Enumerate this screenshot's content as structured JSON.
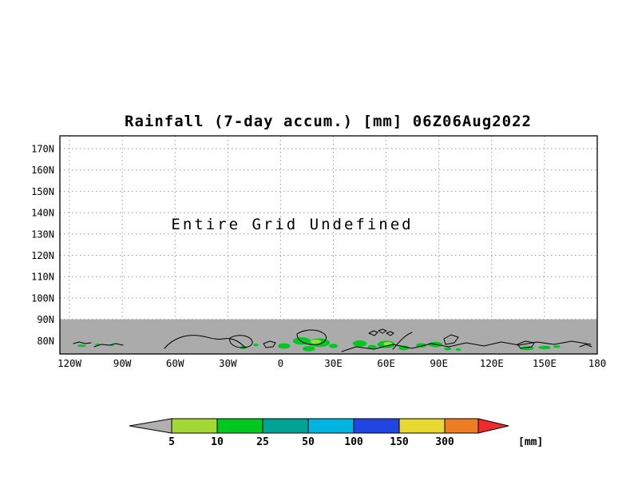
{
  "chart_data": {
    "type": "heatmap",
    "title": "Rainfall (7-day accum.) [mm] 06Z06Aug2022",
    "annotation": "Entire Grid Undefined",
    "x_axis": {
      "ticks": [
        "120W",
        "90W",
        "60W",
        "30W",
        "0",
        "30E",
        "60E",
        "90E",
        "120E",
        "150E",
        "180"
      ]
    },
    "y_axis": {
      "ticks": [
        "170N",
        "160N",
        "150N",
        "140N",
        "130N",
        "120N",
        "110N",
        "100N",
        "90N",
        "80N"
      ]
    },
    "grid": true,
    "undefined_band": {
      "note": "grid undefined above 90N (blank); gray band of defined map below 90N",
      "from_lat": "90N",
      "color": "#ababab"
    },
    "colorbar": {
      "levels": [
        "5",
        "10",
        "25",
        "50",
        "100",
        "150",
        "300"
      ],
      "unit": "[mm]",
      "below_min_color": "#b0b0b0",
      "box_colors": [
        "#a4d837",
        "#00c820",
        "#00a496",
        "#00b4e1",
        "#2244e0",
        "#e8d832"
      ],
      "above_box_color": "#ec7d23",
      "arrow_right_color": "#ef2b2d"
    },
    "rain_patches": [
      {
        "lon": -113,
        "lat": 77.6,
        "dlon": 5,
        "dlat": 1.2,
        "c": "#00c820"
      },
      {
        "lon": -104,
        "lat": 78.2,
        "dlon": 3,
        "dlat": 0.9,
        "c": "#00c820"
      },
      {
        "lon": -96,
        "lat": 77.8,
        "dlon": 2.5,
        "dlat": 0.8,
        "c": "#00c820"
      },
      {
        "lon": -21,
        "lat": 76.8,
        "dlon": 4,
        "dlat": 1.5,
        "c": "#00c820"
      },
      {
        "lon": -14,
        "lat": 78.0,
        "dlon": 3,
        "dlat": 1.2,
        "c": "#00c820"
      },
      {
        "lon": 2,
        "lat": 77.5,
        "dlon": 7,
        "dlat": 2.5,
        "c": "#00c820"
      },
      {
        "lon": 12,
        "lat": 79.8,
        "dlon": 10,
        "dlat": 3.5,
        "c": "#00c820"
      },
      {
        "lon": 22,
        "lat": 79.0,
        "dlon": 12,
        "dlat": 4.0,
        "c": "#00c820"
      },
      {
        "lon": 20,
        "lat": 79.5,
        "dlon": 6,
        "dlat": 2.0,
        "c": "#a4d837"
      },
      {
        "lon": 16,
        "lat": 76.2,
        "dlon": 7,
        "dlat": 2.5,
        "c": "#00c820"
      },
      {
        "lon": 30,
        "lat": 77.5,
        "dlon": 5,
        "dlat": 2.0,
        "c": "#00c820"
      },
      {
        "lon": 45,
        "lat": 78.6,
        "dlon": 8,
        "dlat": 3.0,
        "c": "#00c820"
      },
      {
        "lon": 52,
        "lat": 77.0,
        "dlon": 5,
        "dlat": 2.0,
        "c": "#00c820"
      },
      {
        "lon": 60,
        "lat": 78.2,
        "dlon": 10,
        "dlat": 3.5,
        "c": "#00c820"
      },
      {
        "lon": 61,
        "lat": 78.5,
        "dlon": 5,
        "dlat": 1.8,
        "c": "#a4d837"
      },
      {
        "lon": 70,
        "lat": 76.6,
        "dlon": 6,
        "dlat": 2.2,
        "c": "#00c820"
      },
      {
        "lon": 80,
        "lat": 77.8,
        "dlon": 6,
        "dlat": 2.0,
        "c": "#00c820"
      },
      {
        "lon": 88,
        "lat": 78.2,
        "dlon": 8,
        "dlat": 2.5,
        "c": "#00c820"
      },
      {
        "lon": 95,
        "lat": 76.2,
        "dlon": 4,
        "dlat": 1.5,
        "c": "#00c820"
      },
      {
        "lon": 101,
        "lat": 75.8,
        "dlon": 3,
        "dlat": 1.2,
        "c": "#00c820"
      },
      {
        "lon": 140,
        "lat": 76.4,
        "dlon": 8,
        "dlat": 1.8,
        "c": "#00c820"
      },
      {
        "lon": 150,
        "lat": 76.8,
        "dlon": 7,
        "dlat": 1.6,
        "c": "#00c820"
      },
      {
        "lon": 157,
        "lat": 77.2,
        "dlon": 4,
        "dlat": 1.2,
        "c": "#00c820"
      }
    ],
    "map": {
      "coastline_paths": [
        "M92 430 l7 -2 8 2 7 -1",
        "M118 434 l9 -3 10 1 8 -2 9 2",
        "M206 436 C216 424 232 418 248 420 C260 421 268 426 280 424 C292 422 300 428 306 434",
        "M288 423 c8 -5 20 -4 26 1 c5 5 1 10 -8 11 c-10 1 -20 -4 -18 -12 z",
        "M330 430 l8 -3 7 2 -3 5 -9 1 z",
        "M372 418 c9 -6 24 -7 33 -1 c7 5 3 12 -7 14 c-12 2 -26 -3 -26 -13 z",
        "M428 440 L446 434 L468 437 L492 431 L516 436 L540 430 L562 434 L584 429 L606 433 L628 428 L650 432 L672 428 L694 431 L716 427 L740 431",
        "M492 437 C500 428 506 420 516 416",
        "M556 424 l9 -5 9 3 -5 7 -11 2 z",
        "M462 417 l6 -3 5 2 -4 4 z",
        "M474 414 l5 -2 5 2 -5 3 z",
        "M484 417 l5 -2 4 2 -4 3 z",
        "M648 431 l10 -4 11 2 -3 5 -14 2 z",
        "M726 434 l8 -3 7 3"
      ]
    }
  }
}
